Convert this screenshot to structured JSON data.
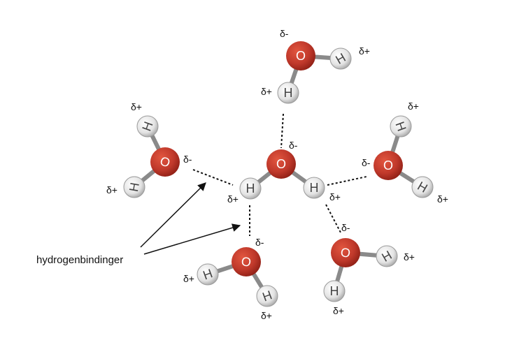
{
  "diagram": {
    "caption": "hydrogenbindinger",
    "oxygen_symbol": "O",
    "hydrogen_symbol": "H",
    "partial_negative": "δ-",
    "partial_positive": "δ+",
    "colors": {
      "oxygen": "#c0392b",
      "oxygen_dark": "#8e1f15",
      "hydrogen": "#e6e6e6",
      "hydrogen_dark": "#9a9a9a",
      "bond": "#8a8a8a",
      "hydrogen_bond": "#111111",
      "text": "#111111"
    }
  }
}
